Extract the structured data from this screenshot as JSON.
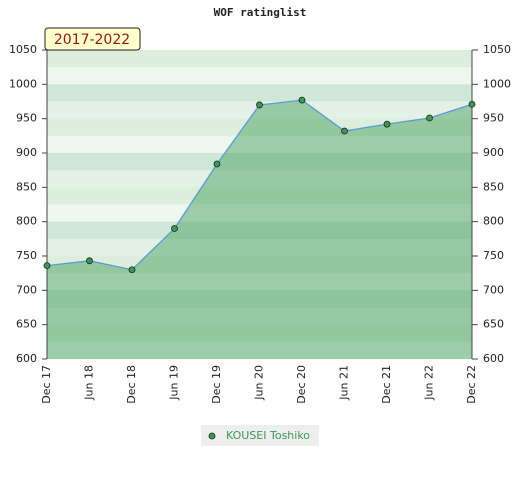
{
  "chart_data": {
    "type": "area",
    "title": "WOF ratinglist",
    "annotation": "2017-2022",
    "categories": [
      "Dec 17",
      "Jun 18",
      "Dec 18",
      "Jun 19",
      "Dec 19",
      "Jun 20",
      "Dec 20",
      "Jun 21",
      "Dec 21",
      "Jun 22",
      "Dec 22"
    ],
    "series": [
      {
        "name": "KOUSEI Toshiko",
        "color": "#3a9a55",
        "values": [
          736,
          743,
          730,
          790,
          884,
          970,
          977,
          932,
          942,
          951,
          971
        ]
      }
    ],
    "ylim": [
      600,
      1050
    ],
    "yticks": [
      600,
      650,
      700,
      750,
      800,
      850,
      900,
      950,
      1000,
      1050
    ],
    "y2lim": [
      600,
      1050
    ],
    "y2ticks": [
      600,
      650,
      700,
      750,
      800,
      850,
      900,
      950,
      1000,
      1050
    ]
  }
}
